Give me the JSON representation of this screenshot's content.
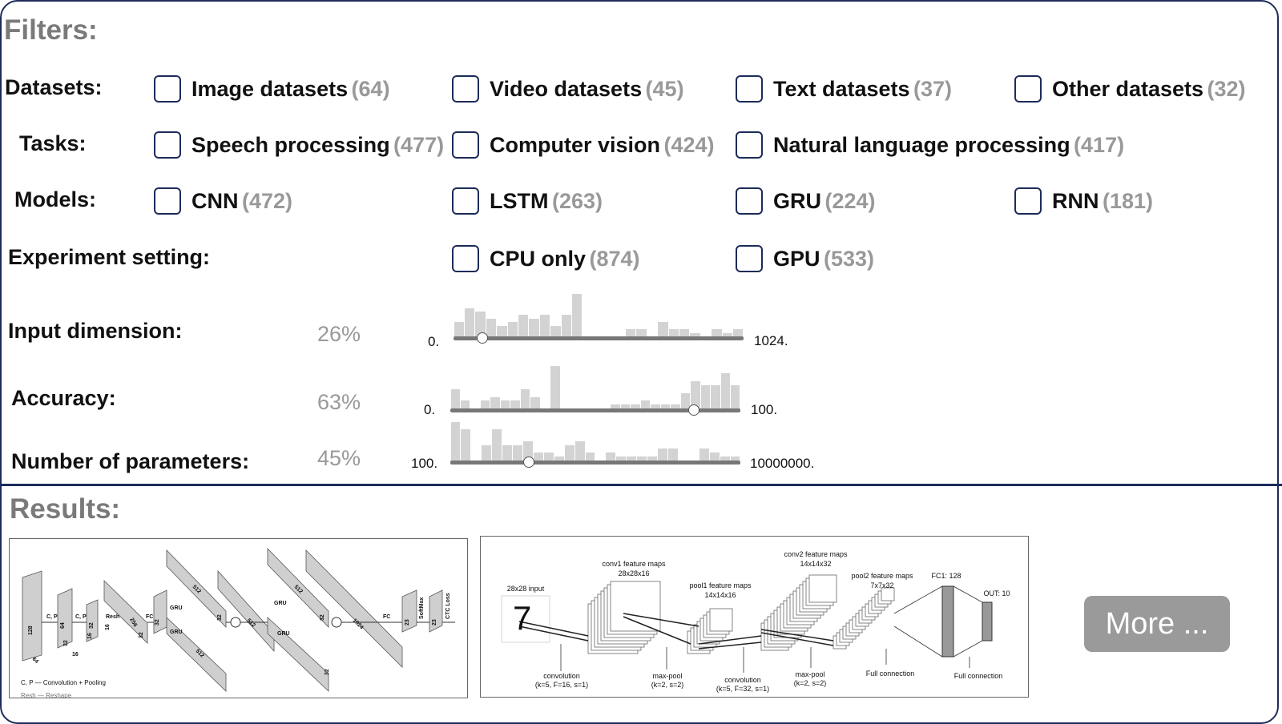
{
  "filters": {
    "title": "Filters:",
    "rows": [
      {
        "label": "Datasets:",
        "options": [
          {
            "label": "Image datasets",
            "count": "(64)"
          },
          {
            "label": "Video datasets",
            "count": "(45)"
          },
          {
            "label": "Text datasets",
            "count": "(37)"
          },
          {
            "label": "Other datasets",
            "count": "(32)"
          }
        ]
      },
      {
        "label": "Tasks:",
        "options": [
          {
            "label": "Speech processing",
            "count": "(477)"
          },
          {
            "label": "Computer vision",
            "count": "(424)"
          },
          {
            "label": "Natural language processing",
            "count": "(417)"
          }
        ]
      },
      {
        "label": "Models:",
        "options": [
          {
            "label": "CNN",
            "count": "(472)"
          },
          {
            "label": "LSTM",
            "count": "(263)"
          },
          {
            "label": "GRU",
            "count": "(224)"
          },
          {
            "label": "RNN",
            "count": "(181)"
          }
        ]
      },
      {
        "label": "Experiment setting:",
        "options": [
          {
            "label": "CPU only",
            "count": "(874)"
          },
          {
            "label": "GPU",
            "count": "(533)"
          }
        ]
      }
    ],
    "ranges": [
      {
        "label": "Input dimension:",
        "percent": "26%",
        "value_fraction": 0.1,
        "min": "0.",
        "max": "1024.",
        "histogram": [
          4,
          8,
          7,
          5,
          3,
          4,
          6,
          5,
          6,
          3,
          6,
          12,
          0,
          0,
          0,
          0,
          2,
          2,
          0,
          4,
          2,
          2,
          1,
          0,
          2,
          1,
          2
        ]
      },
      {
        "label": "Accuracy:",
        "percent": "63%",
        "value_fraction": 0.84,
        "min": "0.",
        "max": "100.",
        "histogram": [
          5,
          2,
          0,
          2,
          3,
          2,
          2,
          5,
          3,
          0,
          11,
          0,
          0,
          0,
          0,
          0,
          1,
          1,
          1,
          2,
          1,
          1,
          1,
          4,
          7,
          6,
          6,
          9,
          6
        ]
      },
      {
        "label": "Number of parameters:",
        "percent": "45%",
        "value_fraction": 0.27,
        "min": "100.",
        "max": "10000000.",
        "histogram": [
          10,
          8,
          0,
          4,
          8,
          4,
          4,
          5,
          2,
          2,
          1,
          4,
          5,
          2,
          0,
          2,
          1,
          1,
          1,
          1,
          3,
          3,
          0,
          0,
          3,
          2,
          1,
          1
        ]
      }
    ]
  },
  "results": {
    "title": "Results:",
    "more_label": "More ...",
    "card1": {
      "texts": [
        "C, P",
        "C, P",
        "Resh",
        "FC",
        "GRU",
        "GRU",
        "GRU",
        "GRU",
        "FC",
        "SoftMax",
        "CTC Loss",
        "128",
        "64",
        "64",
        "32",
        "32",
        "16",
        "16",
        "256",
        "32",
        "32",
        "512",
        "512",
        "32",
        "512",
        "512",
        "32",
        "1024",
        "32",
        "23",
        "23",
        "16"
      ],
      "legend": "C, P — Convolution + Pooling",
      "legend2": "Resh — Reshape"
    },
    "card2": {
      "input_label": "28x28 input",
      "conv1_title": "conv1 feature maps",
      "conv1_dim": "28x28x16",
      "pool1_title": "pool1 feature maps",
      "pool1_dim": "14x14x16",
      "conv2_title": "conv2 feature maps",
      "conv2_dim": "14x14x32",
      "pool2_title": "pool2 feature maps",
      "pool2_dim": "7x7x32",
      "fc1": "FC1: 128",
      "out": "OUT: 10",
      "conv_a": "convolution",
      "conv_a_p": "(k=5, F=16, s=1)",
      "pool_a": "max-pool",
      "pool_a_p": "(k=2, s=2)",
      "conv_b": "convolution",
      "conv_b_p": "(k=5, F=32, s=1)",
      "pool_b": "max-pool",
      "pool_b_p": "(k=2, s=2)",
      "full1": "Full connection",
      "full2": "Full connection",
      "digit": "7"
    }
  },
  "colors": {
    "border": "#1d2b5a",
    "muted": "#999999",
    "bar": "#d3d3d3",
    "more_bg": "#9a9a9a"
  }
}
